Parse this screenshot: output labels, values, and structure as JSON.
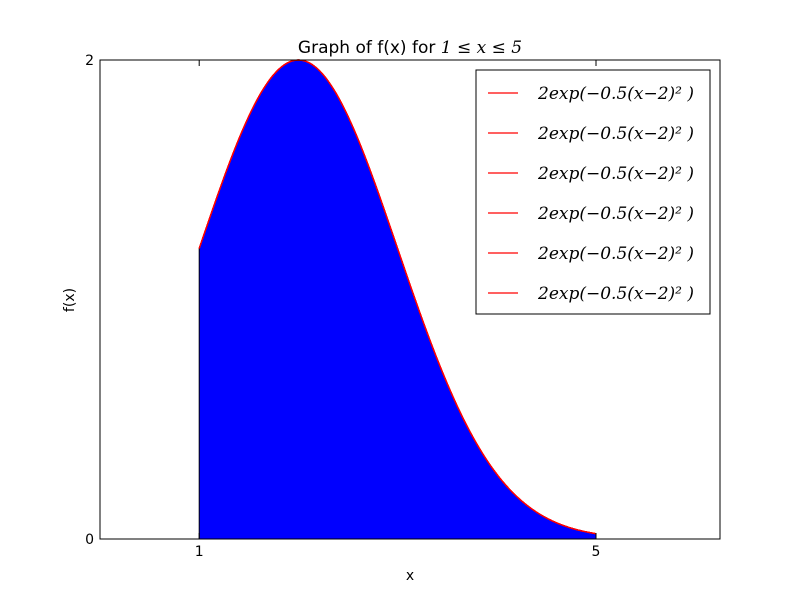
{
  "chart_data": {
    "type": "area",
    "title": "Graph of f(x) for ",
    "title_math": "1 ≤ x ≤ 5",
    "xlabel": "x",
    "ylabel": "f(x)",
    "xlim": [
      0.0,
      6.25
    ],
    "ylim": [
      0,
      2
    ],
    "xticks": [
      1,
      5
    ],
    "yticks": [
      0,
      2
    ],
    "grid": false,
    "legend_position": "top-right",
    "function": "2*exp(-0.5*(x-2)^2)",
    "fill_range": [
      1,
      5
    ],
    "fill_color": "#0000ff",
    "line_color": "#ff0000",
    "series": [
      {
        "name": "2exp(−0.5(x−2)² )",
        "x": [
          1.0,
          1.25,
          1.5,
          1.75,
          2.0,
          2.25,
          2.5,
          2.75,
          3.0,
          3.25,
          3.5,
          3.75,
          4.0,
          4.25,
          4.5,
          4.75,
          5.0
        ],
        "y": [
          1.213,
          1.509,
          1.765,
          1.938,
          2.0,
          1.938,
          1.765,
          1.509,
          1.213,
          0.916,
          0.649,
          0.433,
          0.271,
          0.159,
          0.088,
          0.045,
          0.022
        ]
      }
    ],
    "legend_entries": [
      "2exp(−0.5(x−2)² )",
      "2exp(−0.5(x−2)² )",
      "2exp(−0.5(x−2)² )",
      "2exp(−0.5(x−2)² )",
      "2exp(−0.5(x−2)² )",
      "2exp(−0.5(x−2)² )"
    ]
  }
}
